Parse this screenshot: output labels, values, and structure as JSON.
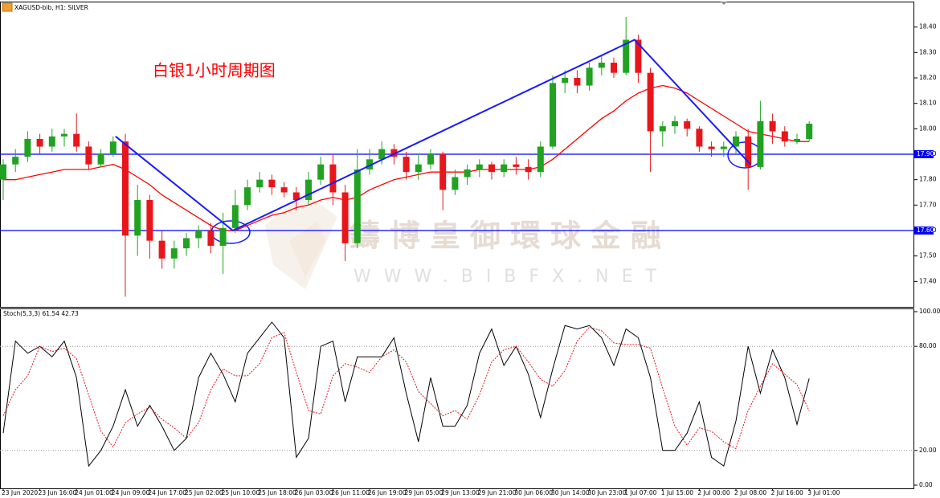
{
  "chart_data": [
    {
      "type": "candlestick",
      "title": "XAGUSD-bib, H1: SILVER",
      "annotation": "白银1小时周期图",
      "watermark": [
        "鑄博皇御環球金融",
        "WWW.BIBFX.NET"
      ],
      "ylim": [
        17.3,
        18.5
      ],
      "yticks": [
        {
          "value": 17.4,
          "label": "17.40"
        },
        {
          "value": 17.5,
          "label": "17.50"
        },
        {
          "value": 17.6,
          "label": "17.60"
        },
        {
          "value": 17.7,
          "label": "17.70"
        },
        {
          "value": 17.8,
          "label": "17.80"
        },
        {
          "value": 17.9,
          "label": "17.90"
        },
        {
          "value": 18.0,
          "label": "18.00"
        },
        {
          "value": 18.1,
          "label": "18.10"
        },
        {
          "value": 18.2,
          "label": "18.20"
        },
        {
          "value": 18.3,
          "label": "18.30"
        },
        {
          "value": 18.4,
          "label": "18.40"
        }
      ],
      "up_color": "#21a221",
      "down_color": "#e8161b",
      "open": [
        17.8,
        17.86,
        17.89,
        17.96,
        17.93,
        17.97,
        17.98,
        17.93,
        17.86,
        17.9,
        17.95,
        17.58,
        17.72,
        17.56,
        17.49,
        17.53,
        17.57,
        17.6,
        17.54,
        17.61,
        17.7,
        17.77,
        17.8,
        17.77,
        17.75,
        17.72,
        17.8,
        17.86,
        17.75,
        17.55,
        17.84,
        17.88,
        17.92,
        17.89,
        17.83,
        17.86,
        17.9,
        17.76,
        17.81,
        17.84,
        17.86,
        17.83,
        17.86,
        17.85,
        17.83,
        17.93,
        18.18,
        18.2,
        18.17,
        18.24,
        18.26,
        18.22,
        18.35,
        18.22,
        17.99,
        18.01,
        18.03,
        18.0,
        17.93,
        17.92,
        17.93,
        17.97,
        17.85,
        18.03,
        17.99,
        17.95,
        17.96
      ],
      "high": [
        17.88,
        17.92,
        17.99,
        17.98,
        18.0,
        18.0,
        18.06,
        17.95,
        17.92,
        17.97,
        17.98,
        17.78,
        17.74,
        17.6,
        17.56,
        17.59,
        17.62,
        17.63,
        17.67,
        17.76,
        17.8,
        17.83,
        17.82,
        17.79,
        17.77,
        17.83,
        17.89,
        17.9,
        17.78,
        17.92,
        17.92,
        17.95,
        17.94,
        17.91,
        17.9,
        17.92,
        17.91,
        17.84,
        17.86,
        17.88,
        17.87,
        17.88,
        17.89,
        17.88,
        17.95,
        18.21,
        18.23,
        18.23,
        18.26,
        18.29,
        18.28,
        18.44,
        18.37,
        18.24,
        18.03,
        18.05,
        18.04,
        18.01,
        17.95,
        17.95,
        17.99,
        18.0,
        18.11,
        18.06,
        18.01,
        17.98,
        18.03
      ],
      "low": [
        17.72,
        17.83,
        17.87,
        17.9,
        17.91,
        17.93,
        17.91,
        17.84,
        17.85,
        17.89,
        17.34,
        17.5,
        17.49,
        17.45,
        17.45,
        17.5,
        17.53,
        17.51,
        17.43,
        17.59,
        17.68,
        17.75,
        17.74,
        17.73,
        17.68,
        17.7,
        17.78,
        17.7,
        17.48,
        17.53,
        17.82,
        17.86,
        17.86,
        17.8,
        17.8,
        17.84,
        17.68,
        17.74,
        17.78,
        17.81,
        17.8,
        17.81,
        17.82,
        17.8,
        17.81,
        17.92,
        18.14,
        18.14,
        18.15,
        18.21,
        18.2,
        18.21,
        18.18,
        17.83,
        17.93,
        17.98,
        17.97,
        17.91,
        17.89,
        17.89,
        17.9,
        17.76,
        17.84,
        17.94,
        17.93,
        17.94,
        17.95
      ],
      "close": [
        17.86,
        17.89,
        17.96,
        17.93,
        17.97,
        17.98,
        17.93,
        17.86,
        17.9,
        17.95,
        17.58,
        17.72,
        17.56,
        17.49,
        17.53,
        17.57,
        17.6,
        17.54,
        17.61,
        17.7,
        17.77,
        17.8,
        17.77,
        17.75,
        17.72,
        17.8,
        17.86,
        17.75,
        17.55,
        17.84,
        17.88,
        17.92,
        17.89,
        17.83,
        17.86,
        17.9,
        17.76,
        17.81,
        17.84,
        17.86,
        17.83,
        17.86,
        17.85,
        17.83,
        17.93,
        18.18,
        18.2,
        18.17,
        18.24,
        18.26,
        18.22,
        18.35,
        18.22,
        17.99,
        18.01,
        18.03,
        18.0,
        17.93,
        17.92,
        17.93,
        17.97,
        17.85,
        18.03,
        17.99,
        17.95,
        17.96,
        18.02
      ],
      "overlays": [
        {
          "color": "#ff0000",
          "values": [
            17.8,
            17.8,
            17.81,
            17.82,
            17.83,
            17.84,
            17.84,
            17.84,
            17.85,
            17.86,
            17.84,
            17.81,
            17.78,
            17.74,
            17.71,
            17.68,
            17.65,
            17.62,
            17.6,
            17.6,
            17.62,
            17.64,
            17.66,
            17.67,
            17.69,
            17.7,
            17.72,
            17.73,
            17.72,
            17.73,
            17.76,
            17.78,
            17.8,
            17.81,
            17.82,
            17.83,
            17.83,
            17.83,
            17.83,
            17.84,
            17.84,
            17.84,
            17.84,
            17.84,
            17.85,
            17.88,
            17.92,
            17.96,
            18.0,
            18.04,
            18.07,
            18.11,
            18.14,
            18.16,
            18.17,
            18.16,
            18.14,
            18.11,
            18.08,
            18.05,
            18.02,
            17.99,
            17.98,
            17.97,
            17.96,
            17.95,
            17.95
          ]
        }
      ],
      "hlines": [
        {
          "value": 17.9,
          "label": "17.90"
        },
        {
          "value": 17.6,
          "label": "17.60"
        }
      ],
      "hline_color": "#0000ff",
      "trend_line": {
        "color": "#1a1aff",
        "x": [
          9.2,
          18.8,
          51.7,
          61.2
        ],
        "values": [
          17.97,
          17.6,
          18.35,
          17.86
        ]
      }
    },
    {
      "type": "line",
      "title": "Stoch(5,3,3) 61.54 42.73",
      "ylim": [
        0,
        100
      ],
      "yticks": [
        {
          "value": 0,
          "label": "0.00"
        },
        {
          "value": 20,
          "label": "20.00"
        },
        {
          "value": 80,
          "label": "80.00"
        },
        {
          "value": 100,
          "label": "100.00"
        }
      ],
      "levels": [
        20,
        80
      ],
      "categories": [
        "23 Jun 2020",
        null,
        null,
        "23 Jun 16:00",
        null,
        null,
        "24 Jun 01:00",
        null,
        null,
        "24 Jun 09:00",
        null,
        null,
        "24 Jun 17:00",
        null,
        null,
        "25 Jun 02:00",
        null,
        null,
        "25 Jun 10:00",
        null,
        null,
        "25 Jun 18:00",
        null,
        null,
        "26 Jun 03:00",
        null,
        null,
        "26 Jun 11:00",
        null,
        null,
        "26 Jun 19:00",
        null,
        null,
        "29 Jun 05:00",
        null,
        null,
        "29 Jun 13:00",
        null,
        null,
        "29 Jun 21:00",
        null,
        null,
        "30 Jun 06:00",
        null,
        null,
        "30 Jun 14:00",
        null,
        null,
        "30 Jun 23:00",
        null,
        null,
        "1 Jul 07:00",
        null,
        null,
        "1 Jul 15:00",
        null,
        null,
        "2 Jul 00:00",
        null,
        null,
        "2 Jul 08:00",
        null,
        null,
        "2 Jul 16:00",
        null,
        null,
        "3 Jul 01:00"
      ],
      "series": [
        {
          "color": "#000000",
          "dash": false,
          "values": [
            30,
            83,
            76,
            80,
            74,
            83,
            62,
            11,
            20,
            34,
            55,
            34,
            46,
            34,
            20,
            27,
            62,
            76,
            64,
            48,
            76,
            85,
            94,
            85,
            16,
            27,
            80,
            83,
            48,
            74,
            74,
            74,
            85,
            53,
            25,
            62,
            34,
            34,
            46,
            76,
            90,
            69,
            80,
            64,
            39,
            67,
            92,
            90,
            92,
            85,
            69,
            90,
            85,
            62,
            20,
            20,
            30,
            48,
            16,
            11,
            37,
            80,
            53,
            78,
            62,
            35,
            61.54
          ]
        },
        {
          "color": "#e8161b",
          "dash": true,
          "values": [
            40,
            55,
            63,
            80,
            77,
            79,
            73,
            52,
            31,
            22,
            36,
            41,
            45,
            38,
            33,
            27,
            36,
            55,
            67,
            63,
            63,
            70,
            85,
            88,
            65,
            43,
            41,
            63,
            70,
            68,
            65,
            74,
            78,
            71,
            54,
            47,
            40,
            43,
            38,
            52,
            71,
            78,
            80,
            71,
            61,
            57,
            66,
            83,
            91,
            89,
            82,
            81,
            81,
            79,
            56,
            34,
            23,
            33,
            31,
            25,
            21,
            43,
            57,
            70,
            64,
            58,
            42.73
          ]
        }
      ]
    }
  ]
}
